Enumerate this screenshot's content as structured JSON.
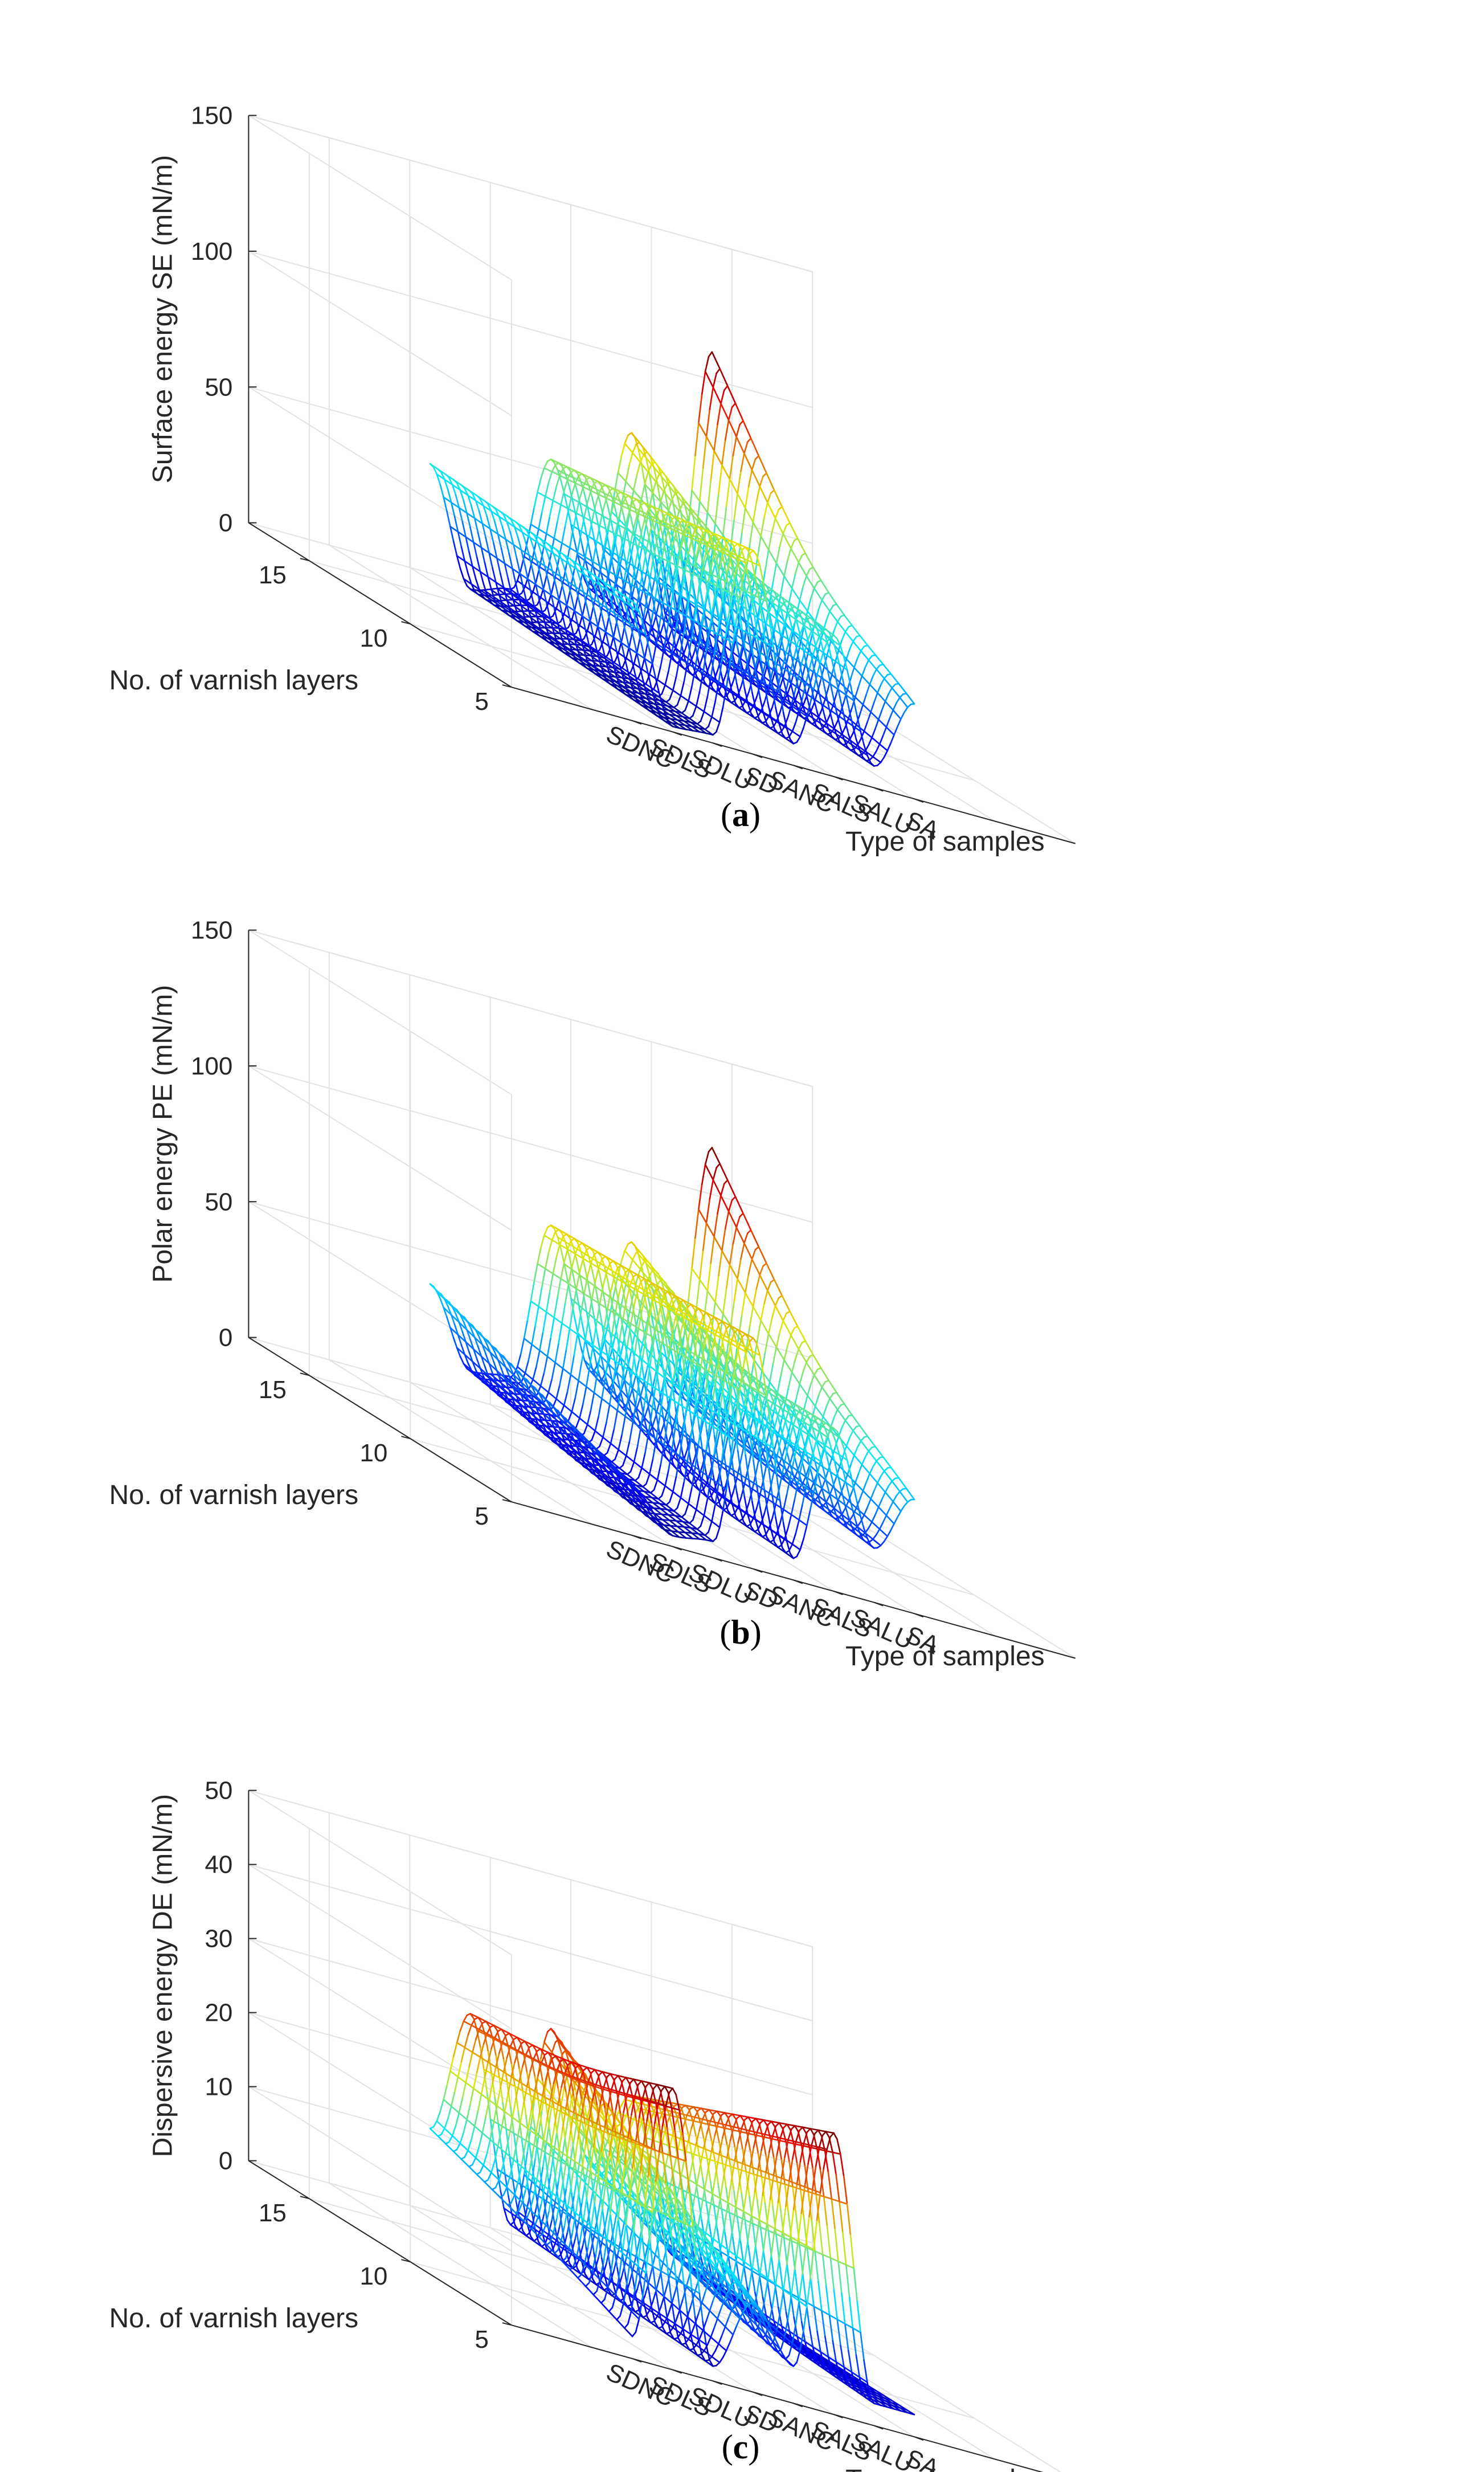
{
  "chart_data": [
    {
      "id": "a",
      "type": "surface",
      "caption": "a",
      "zlabel": "Surface energy SE (mN/m)",
      "xlabel": "Type of samples",
      "ylabel": "No. of varnish layers",
      "zlim": [
        0,
        150
      ],
      "zticks": [
        "0",
        "50",
        "100",
        "150"
      ],
      "yticks": [
        "5",
        "10",
        "15"
      ],
      "categories": [
        "SDNC",
        "SDLS",
        "SDLU",
        "SD",
        "SANC",
        "SALS",
        "SALU",
        "SA"
      ],
      "series": [
        {
          "name": "5 layers",
          "values": [
            44,
            2,
            3,
            75,
            8,
            52,
            8,
            35
          ]
        },
        {
          "name": "10 layers",
          "values": [
            46,
            4,
            6,
            68,
            10,
            58,
            10,
            62
          ]
        },
        {
          "name": "15 layers",
          "values": [
            48,
            6,
            10,
            62,
            18,
            80,
            12,
            118
          ]
        }
      ]
    },
    {
      "id": "b",
      "type": "surface",
      "caption": "b",
      "zlabel": "Polar energy PE (mN/m)",
      "xlabel": "Type of samples",
      "ylabel": "No. of varnish layers",
      "zlim": [
        0,
        150
      ],
      "zticks": [
        "0",
        "50",
        "100",
        "150"
      ],
      "yticks": [
        "5",
        "10",
        "15"
      ],
      "categories": [
        "SDNC",
        "SDLS",
        "SDLU",
        "SD",
        "SANC",
        "SALS",
        "SALU",
        "SA"
      ],
      "series": [
        {
          "name": "5 layers",
          "values": [
            18,
            4,
            6,
            85,
            8,
            60,
            20,
            42
          ]
        },
        {
          "name": "10 layers",
          "values": [
            32,
            10,
            12,
            82,
            12,
            62,
            25,
            72
          ]
        },
        {
          "name": "15 layers",
          "values": [
            46,
            18,
            20,
            80,
            30,
            82,
            32,
            125
          ]
        }
      ]
    },
    {
      "id": "c",
      "type": "surface",
      "caption": "c",
      "zlabel": "Dispersive energy DE (mN/m)",
      "xlabel": "Type of samples",
      "ylabel": "No. of varnish layers",
      "zlim": [
        0,
        50
      ],
      "zticks": [
        "0",
        "10",
        "20",
        "30",
        "40",
        "50"
      ],
      "yticks": [
        "5",
        "10",
        "15"
      ],
      "categories": [
        "SDNC",
        "SDLS",
        "SDLU",
        "SD",
        "SANC",
        "SALS",
        "SALU",
        "SA"
      ],
      "series": [
        {
          "name": "5 layers",
          "values": [
            3,
            38,
            2,
            12,
            5,
            38,
            3,
            3
          ]
        },
        {
          "name": "10 layers",
          "values": [
            9,
            33,
            3,
            22,
            9,
            32,
            4,
            3
          ]
        },
        {
          "name": "15 layers",
          "values": [
            14,
            31,
            4,
            32,
            15,
            26,
            6,
            4
          ]
        }
      ]
    }
  ]
}
